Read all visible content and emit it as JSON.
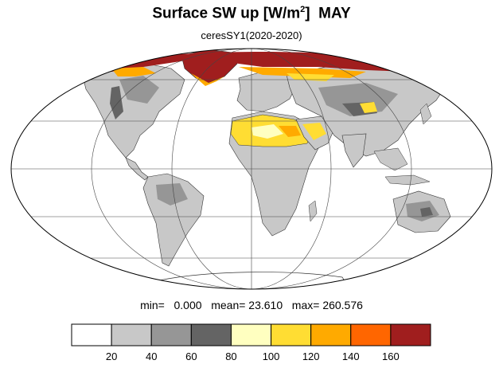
{
  "title": {
    "main": "Surface SW up [W/m",
    "sup": "2",
    "close": "]",
    "month": "MAY"
  },
  "subtitle": "ceresSY1(2020-2020)",
  "stats": {
    "min_label": "min=",
    "min_value": "0.000",
    "mean_label": "mean=",
    "mean_value": "23.610",
    "max_label": "max=",
    "max_value": "260.576"
  },
  "colorbar": {
    "colors": [
      "#ffffff",
      "#c8c8c8",
      "#969696",
      "#646464",
      "#ffffc0",
      "#ffdd33",
      "#ffaa00",
      "#ff6600",
      "#a01e1e"
    ],
    "tick_labels": [
      "20",
      "40",
      "60",
      "80",
      "100",
      "120",
      "140",
      "160"
    ]
  },
  "map": {
    "projection": "mollweide",
    "ocean_color": "#ffffff",
    "land_base_color": "#c8c8c8",
    "desert_color": "#ffdd33",
    "ice_color": "#a01e1e"
  }
}
